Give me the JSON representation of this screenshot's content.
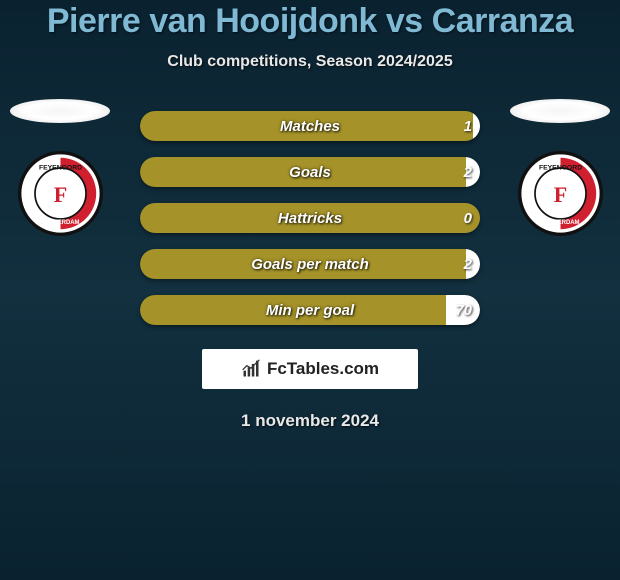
{
  "title": "Pierre van Hooijdonk vs Carranza",
  "subtitle": "Club competitions, Season 2024/2025",
  "date": "1 november 2024",
  "colors": {
    "title": "#7fb9d4",
    "text": "#e8e8e8",
    "bg_top": "#0a2230",
    "bg_mid": "#12303f",
    "bar_bg": "#11313f",
    "fill_olive": "#a59329",
    "fill_white": "#ffffff"
  },
  "branding": {
    "text": "FcTables.com"
  },
  "clubs": {
    "left": {
      "name": "Feyenoord Rotterdam",
      "logo_primary": "#d02030",
      "logo_accent": "#ffffff",
      "logo_border": "#111111"
    },
    "right": {
      "name": "Feyenoord Rotterdam",
      "logo_primary": "#d02030",
      "logo_accent": "#ffffff",
      "logo_border": "#111111"
    }
  },
  "stats": [
    {
      "label": "Matches",
      "left_pct": 98,
      "right_pct": 2,
      "value": "1",
      "fill_left": "#a59329",
      "fill_right": "#ffffff"
    },
    {
      "label": "Goals",
      "left_pct": 96,
      "right_pct": 4,
      "value": "2",
      "fill_left": "#a59329",
      "fill_right": "#ffffff"
    },
    {
      "label": "Hattricks",
      "left_pct": 100,
      "right_pct": 0,
      "value": "0",
      "fill_left": "#a59329",
      "fill_right": "#ffffff"
    },
    {
      "label": "Goals per match",
      "left_pct": 96,
      "right_pct": 4,
      "value": "2",
      "fill_left": "#a59329",
      "fill_right": "#ffffff"
    },
    {
      "label": "Min per goal",
      "left_pct": 90,
      "right_pct": 10,
      "value": "70",
      "fill_left": "#a59329",
      "fill_right": "#ffffff"
    }
  ]
}
